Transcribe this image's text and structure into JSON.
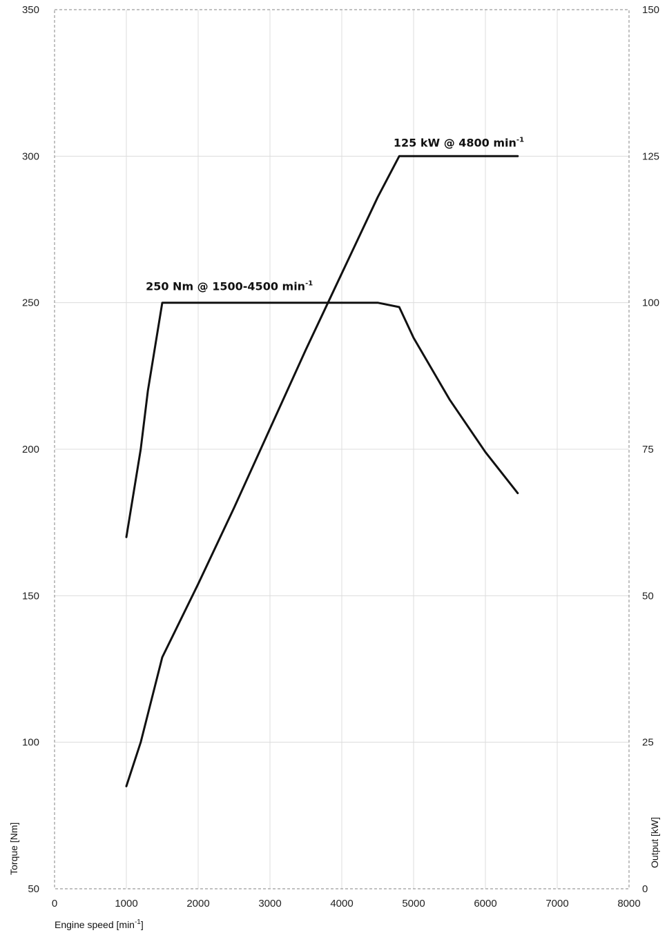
{
  "chart_data": {
    "type": "line",
    "title": "",
    "xlabel": {
      "main": "Engine speed [min",
      "sup": "-1",
      "end": "]"
    },
    "ylabel_left": "Torque [Nm]",
    "ylabel_right": "Output [kW]",
    "xlim": [
      0,
      8000
    ],
    "ylim_left": [
      50,
      350
    ],
    "ylim_right": [
      0,
      150
    ],
    "grid": true,
    "x_ticks": [
      "0",
      "1000",
      "2000",
      "3000",
      "4000",
      "5000",
      "6000",
      "7000",
      "8000"
    ],
    "y_left_ticks": [
      "50",
      "100",
      "150",
      "200",
      "250",
      "300",
      "350"
    ],
    "y_right_ticks": [
      "0",
      "25",
      "50",
      "75",
      "100",
      "125",
      "150"
    ],
    "series": [
      {
        "axis": "left",
        "x": [
          1000,
          1200,
          1300,
          1500,
          2000,
          3000,
          4000,
          4500,
          4800,
          5000,
          5500,
          6000,
          6450
        ],
        "y": [
          170,
          200,
          220,
          250,
          250,
          250,
          250,
          250,
          248.5,
          238,
          217,
          199,
          185
        ]
      },
      {
        "axis": "right",
        "x": [
          1000,
          1200,
          1500,
          2000,
          2500,
          3000,
          3500,
          4000,
          4500,
          4800,
          5500,
          6000,
          6450
        ],
        "y": [
          17.5,
          25,
          39.5,
          52,
          65,
          78.5,
          92,
          105,
          118,
          125,
          125,
          125,
          125
        ]
      }
    ],
    "annotations": [
      {
        "main": "250 Nm @ 1500-4500 min",
        "sup": "-1"
      },
      {
        "main": "125 kW @ 4800 min",
        "sup": "-1"
      }
    ]
  }
}
